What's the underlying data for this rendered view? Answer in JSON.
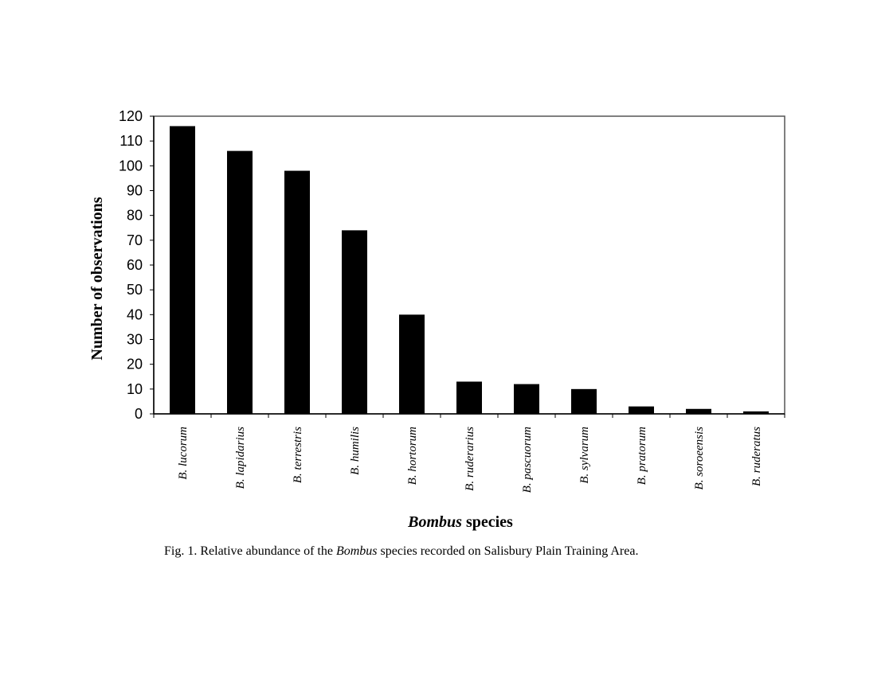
{
  "chart_data": {
    "type": "bar",
    "categories": [
      "B. lucorum",
      "B. lapidarius",
      "B. terrestris",
      "B. humilis",
      "B. hortorum",
      "B. ruderarius",
      "B. pascuorum",
      "B. sylvarum",
      "B. pratorum",
      "B. soroeensis",
      "B. ruderatus"
    ],
    "values": [
      116,
      106,
      98,
      74,
      40,
      13,
      12,
      10,
      3,
      2,
      1
    ],
    "ylabel": "Number of observations",
    "xlabel_italic": "Bombus",
    "xlabel_rest": "species",
    "ylim": [
      0,
      120
    ],
    "yticks": [
      0,
      10,
      20,
      30,
      40,
      50,
      60,
      70,
      80,
      90,
      100,
      110,
      120
    ],
    "grid": false,
    "bar_color": "#000000"
  },
  "caption": {
    "prefix": "Fig. 1.  Relative abundance of the ",
    "italic": "Bombus",
    "suffix": " species recorded on Salisbury Plain Training Area."
  }
}
